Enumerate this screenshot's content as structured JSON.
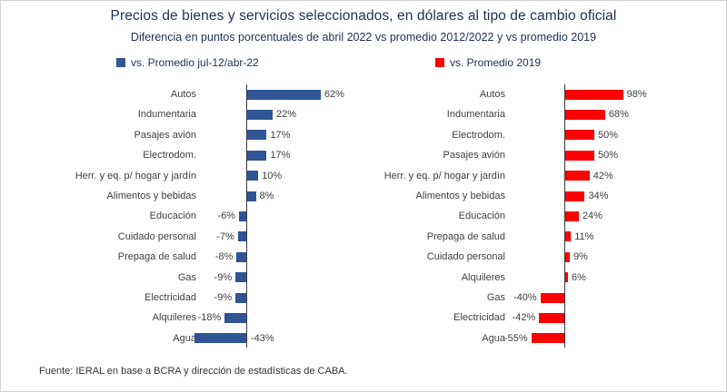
{
  "header": {
    "title": "Precios de bienes y servicios seleccionados, en dólares al tipo de cambio oficial",
    "subtitle": "Diferencia en puntos porcentuales de abril 2022 vs promedio 2012/2022 y vs promedio 2019"
  },
  "legend": [
    {
      "label": "vs. Promedio jul-12/abr-22",
      "color": "#2F5597"
    },
    {
      "label": "vs. Promedio 2019",
      "color": "#FF0000"
    }
  ],
  "footer": {
    "source": "Fuente: IERAL en base a BCRA y dirección de estadísticas de CABA."
  },
  "chart_data": [
    {
      "type": "bar",
      "orientation": "horizontal",
      "series_name": "vs. Promedio jul-12/abr-22",
      "color": "#2F5597",
      "categories": [
        "Autos",
        "Indumentaria",
        "Pasajes avión",
        "Electrodom.",
        "Herr. y eq. p/ hogar y jardín",
        "Alimentos y bebidas",
        "Educación",
        "Cuidado personal",
        "Prepaga de salud",
        "Gas",
        "Electricidad",
        "Alquileres",
        "Agua"
      ],
      "values": [
        62,
        22,
        17,
        17,
        10,
        8,
        -6,
        -7,
        -8,
        -9,
        -9,
        -18,
        -43
      ],
      "value_labels": [
        "62%",
        "22%",
        "17%",
        "17%",
        "10%",
        "8%",
        "-6%",
        "-7%",
        "-8%",
        "-9%",
        "-9%",
        "-18%",
        "-43%"
      ],
      "xlim": [
        -60,
        110
      ],
      "grid": false
    },
    {
      "type": "bar",
      "orientation": "horizontal",
      "series_name": "vs. Promedio 2019",
      "color": "#FF0000",
      "categories": [
        "Autos",
        "Indumentaria",
        "Electrodom.",
        "Pasajes avión",
        "Herr. y eq. p/ hogar y jardín",
        "Alimentos y bebidas",
        "Educación",
        "Prepaga de salud",
        "Cuidado personal",
        "Alquileres",
        "Gas",
        "Electricidad",
        "Agua"
      ],
      "values": [
        98,
        68,
        50,
        50,
        42,
        34,
        24,
        11,
        9,
        6,
        -40,
        -42,
        -55
      ],
      "value_labels": [
        "98%",
        "68%",
        "50%",
        "50%",
        "42%",
        "34%",
        "24%",
        "11%",
        "9%",
        "6%",
        "-40%",
        "-42%",
        "-55%"
      ],
      "xlim": [
        -70,
        120
      ],
      "grid": false
    }
  ]
}
